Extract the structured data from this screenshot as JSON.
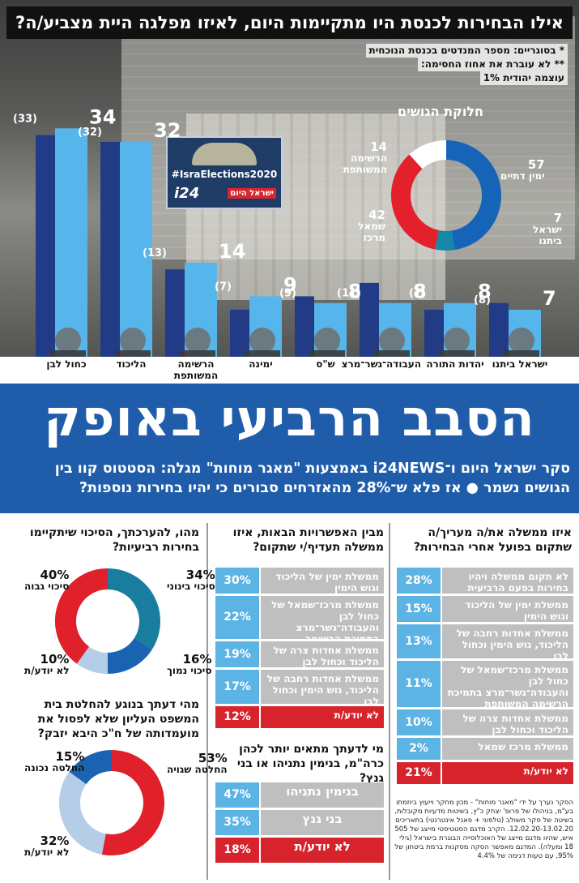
{
  "top": {
    "title": "אילו הבחירות לכנסת היו מתקיימות היום, לאיזו מפלגה היית מצביע/ה?",
    "note1": "* בסוגריים: מספר המנדטים בכנסת הנוכחית",
    "note2": "** לא עוברת את אחוז החסימה:",
    "note3": "עוצמה יהודית 1%",
    "blocs_title": "חלוקת הגושים",
    "logo_tag": "#IsraElections2020",
    "logo_brand": "i24",
    "logo_paper": "ישראל היום"
  },
  "chart_data": [
    {
      "type": "bar",
      "title": "אילו הבחירות לכנסת היו מתקיימות היום, לאיזו מפלגה היית מצביע/ה?",
      "categories": [
        "כחול לבן",
        "הליכוד",
        "הרשימה המשותפת",
        "ימינה",
        "ש\"ס",
        "העבודה־גשר־מרצ",
        "יהדות התורה",
        "ישראל ביתנו"
      ],
      "series": [
        {
          "values": [
            34,
            32,
            14,
            9,
            8,
            8,
            8,
            7
          ]
        },
        {
          "values": [
            33,
            32,
            13,
            7,
            9,
            11,
            7,
            8
          ]
        }
      ],
      "value_labels": [
        "34",
        "32",
        "14",
        "9",
        "8",
        "8",
        "8",
        "7"
      ],
      "current_labels": [
        "(33)",
        "(32)",
        "(13)",
        "(7)",
        "(9)",
        "(11)",
        "(7)",
        "(8)"
      ],
      "colors": {
        "poll": "#56b5ea",
        "current": "#213b86"
      },
      "ylim": [
        0,
        35
      ]
    },
    {
      "type": "pie",
      "title": "חלוקת הגושים",
      "slices": [
        {
          "label": "ימין דתיים",
          "value": 57,
          "color": "#1664b8"
        },
        {
          "label": "ישראל ביתנו",
          "value": 7,
          "color": "#1488a6"
        },
        {
          "label": "שמאל מרכז",
          "value": 42,
          "color": "#e3202b"
        },
        {
          "label": "הרשימה המשותפת",
          "value": 14,
          "color": "#ffffff"
        }
      ]
    },
    {
      "type": "pie",
      "title": "מהו, להערכתך, הסיכוי שיתקיימו בחירות רביעיות?",
      "slices": [
        {
          "label": "סיכוי בינוני",
          "value": 34,
          "color": "#197da0"
        },
        {
          "label": "סיכוי נמוך",
          "value": 16,
          "color": "#1a63b3"
        },
        {
          "label": "לא יודע/ת",
          "value": 10,
          "color": "#b6cde8"
        },
        {
          "label": "סיכוי גבוה",
          "value": 40,
          "color": "#e0202b"
        }
      ]
    },
    {
      "type": "pie",
      "title": "מהי דעתך בנוגע להחלטת בית המשפט העליון שלא לפסול את מועמדותה של ח\"כ היבא יזבק?",
      "slices": [
        {
          "label": "החלטה שגויה",
          "value": 53,
          "color": "#e0202b"
        },
        {
          "label": "לא יודע/ת",
          "value": 32,
          "color": "#b6cde8"
        },
        {
          "label": "החלטה נכונה",
          "value": 15,
          "color": "#1a63b3"
        }
      ]
    }
  ],
  "bar_parties": [
    {
      "name": "כחול לבן"
    },
    {
      "name": "הליכוד"
    },
    {
      "name": "הרשימה המשותפת"
    },
    {
      "name": "ימינה"
    },
    {
      "name": "ש\"ס"
    },
    {
      "name": "העבודה־גשר־מרצ"
    },
    {
      "name": "יהדות התורה"
    },
    {
      "name": "ישראל ביתנו"
    }
  ],
  "headline": "הסבב הרביעי באופק",
  "subheadline": "סקר ישראל היום ו־i24NEWS באמצעות \"מאגר מוחות\" מגלה: הסטטוס קוו בין הגושים נשמר ● אז פלא ש־28% מהאזרחים סבורים כי יהיו בחירות נוספות?",
  "q1": {
    "title": "איזו ממשלה את/ה מעריך/ה שתקום בפועל אחרי הבחירות?",
    "rows": [
      {
        "label": "לא תקום ממשלה ויהיו בחירות בפעם הרביעית",
        "value": "28%"
      },
      {
        "label": "ממשלת ימין של הליכוד וגוש הימין",
        "value": "15%"
      },
      {
        "label": "ממשלת אחדות רחבה של הליכוד, גוש הימין וכחול לבן",
        "value": "13%"
      },
      {
        "label": "ממשלת מרכז־שמאל של כחול לבן והעבודה־גשר־מרצ בתמיכת הרשימה המשותפת",
        "value": "11%"
      },
      {
        "label": "ממשלת אחדות צרה של הליכוד וכחול לבן",
        "value": "10%"
      },
      {
        "label": "ממשלת מרכז שמאל",
        "value": "2%"
      },
      {
        "label": "לא יודע/ת",
        "value": "21%"
      }
    ]
  },
  "q2": {
    "title": "מבין האפשרויות הבאות, איזו ממשלה תעדיף/י שתקום?",
    "rows": [
      {
        "label": "ממשלת ימין של הליכוד וגוש הימין",
        "value": "30%"
      },
      {
        "label": "ממשלת מרכז־שמאל של כחול לבן והעבודה־גשר־מרצ בתמיכת הרשימה המשותפת",
        "value": "22%"
      },
      {
        "label": "ממשלת אחדות צרה של הליכוד וכחול לבן",
        "value": "19%"
      },
      {
        "label": "ממשלת אחדות רחבה של הליכוד, גוש הימין וכחול לבן",
        "value": "17%"
      },
      {
        "label": "לא יודע/ת",
        "value": "12%"
      }
    ]
  },
  "q3": {
    "title": "מי לדעתך מתאים יותר לכהן כרה\"מ, בנימין נתניהו או בני גנץ?",
    "rows": [
      {
        "label": "בנימין נתניהו",
        "value": "47%"
      },
      {
        "label": "בני גנץ",
        "value": "35%"
      },
      {
        "label": "לא יודע/ת",
        "value": "18%"
      }
    ]
  },
  "q4": {
    "title": "מהו, להערכתך, הסיכוי שיתקיימו בחירות רביעיות?",
    "labels": [
      {
        "pct": "34%",
        "text": "סיכוי בינוני"
      },
      {
        "pct": "16%",
        "text": "סיכוי נמוך"
      },
      {
        "pct": "10%",
        "text": "לא יודע/ת"
      },
      {
        "pct": "40%",
        "text": "סיכוי גבוה"
      }
    ]
  },
  "q5": {
    "title": "מהי דעתך בנוגע להחלטת בית המשפט העליון שלא לפסול את מועמדותה של ח\"כ היבא יזבק?",
    "labels": [
      {
        "pct": "53%",
        "text": "החלטה שגויה"
      },
      {
        "pct": "32%",
        "text": "לא יודע/ת"
      },
      {
        "pct": "15%",
        "text": "החלטה נכונה"
      }
    ]
  },
  "bloc_labels": [
    {
      "value": "57",
      "text": "ימין דתיים"
    },
    {
      "value": "7",
      "text": "ישראל ביתנו"
    },
    {
      "value": "42",
      "text": "שמאל מרכז"
    },
    {
      "value": "14",
      "text": "הרשימה המשותפת"
    }
  ],
  "footnote": "הסקר נערך על ידי \"מאגר מוחות\" - מכון מחקר וייעוץ ביוזמתו בע\"מ, בניהולו של פרופ' יצחק כ\"ץ, בשיטות מדעיות מקובלות, בשיטה של סקר משולב (טלפוני + פאנל אינטרנטי) בתאריכים 12.02.20-13.02.20. הקרב מדגם הסטטיסטי מייצג של 505 איש, שהיוו מדגם מייצג של האוכלוסייה הבוגרת בישראל (גילי 18 ומעלה). המדגם מאפשר הסקה מסקנות ברמת ביטחון של 95%, עם טעות דגימה של 4.4%"
}
